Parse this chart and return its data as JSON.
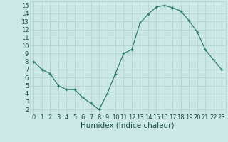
{
  "x": [
    0,
    1,
    2,
    3,
    4,
    5,
    6,
    7,
    8,
    9,
    10,
    11,
    12,
    13,
    14,
    15,
    16,
    17,
    18,
    19,
    20,
    21,
    22,
    23
  ],
  "y": [
    8.0,
    7.0,
    6.5,
    5.0,
    4.5,
    4.5,
    3.5,
    2.8,
    2.0,
    4.0,
    6.5,
    9.0,
    9.5,
    12.8,
    13.9,
    14.8,
    15.0,
    14.7,
    14.3,
    13.1,
    11.7,
    9.5,
    8.2,
    7.0
  ],
  "line_color": "#2e7d6e",
  "marker": "+",
  "bg_color": "#cce8e6",
  "grid_color": "#aed0cc",
  "xlabel": "Humidex (Indice chaleur)",
  "xlim": [
    -0.5,
    23.5
  ],
  "ylim": [
    1.5,
    15.5
  ],
  "xticks": [
    0,
    1,
    2,
    3,
    4,
    5,
    6,
    7,
    8,
    9,
    10,
    11,
    12,
    13,
    14,
    15,
    16,
    17,
    18,
    19,
    20,
    21,
    22,
    23
  ],
  "yticks": [
    2,
    3,
    4,
    5,
    6,
    7,
    8,
    9,
    10,
    11,
    12,
    13,
    14,
    15
  ],
  "label_color": "#1a4a44",
  "tick_fontsize": 6.0,
  "xlabel_fontsize": 7.5
}
